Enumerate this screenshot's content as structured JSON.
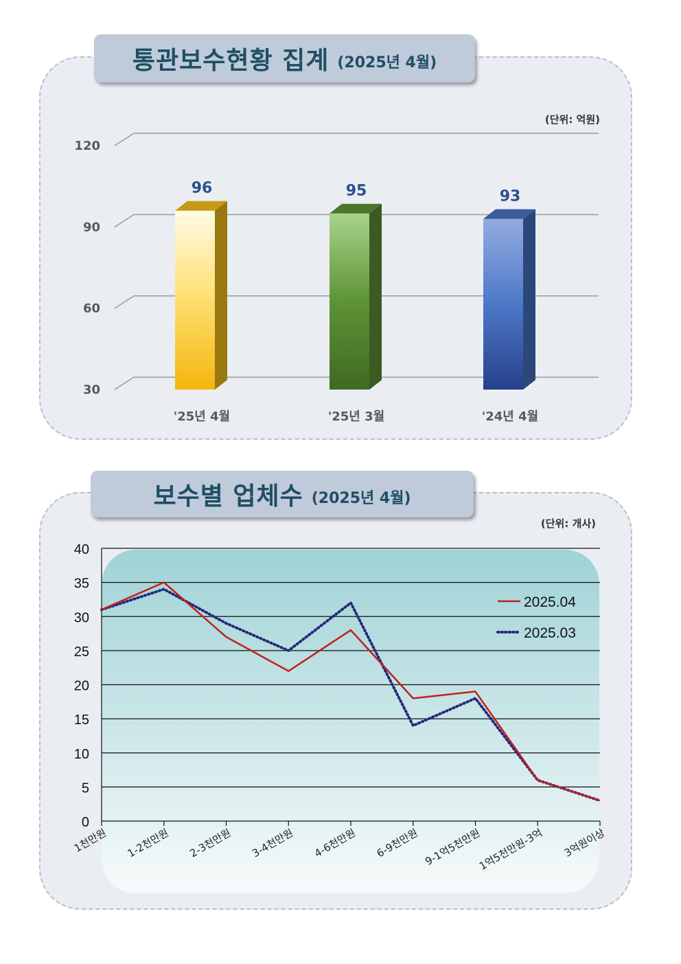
{
  "bar_section": {
    "title": "통관보수현황 집계",
    "subtitle": "(2025년 4월)",
    "unit": "(단위: 억원)"
  },
  "line_section": {
    "title": "보수별 업체수",
    "subtitle": "(2025년 4월)",
    "unit": "(단위: 개사)"
  },
  "chart_data": [
    {
      "type": "bar",
      "categories": [
        "'25년 4월",
        "'25년 3월",
        "'24년 4월"
      ],
      "values": [
        96,
        95,
        93
      ],
      "data_labels": [
        "96",
        "95",
        "93"
      ],
      "yticks": [
        "30",
        "60",
        "90",
        "120"
      ],
      "ylim": [
        30,
        120
      ],
      "colors": [
        "#f6c21a",
        "#5e9336",
        "#4a72c4"
      ],
      "grid": true,
      "style": "3d"
    },
    {
      "type": "line",
      "categories": [
        "1천만원",
        "1-2천만원",
        "2-3천만원",
        "3-4천만원",
        "4-6천만원",
        "6-9천만원",
        "9-1억5천만원",
        "1억5천만원-3억",
        "3억원이상"
      ],
      "series": [
        {
          "name": "2025.04",
          "values": [
            31,
            35,
            27,
            22,
            28,
            18,
            19,
            6,
            3
          ],
          "color": "#c0201f",
          "dash": "solid"
        },
        {
          "name": "2025.03",
          "values": [
            31,
            34,
            29,
            25,
            32,
            14,
            18,
            6,
            3
          ],
          "color": "#26287a",
          "dash": "dotted"
        }
      ],
      "yticks": [
        "0",
        "5",
        "10",
        "15",
        "20",
        "25",
        "30",
        "35",
        "40"
      ],
      "ylim": [
        0,
        40
      ],
      "grid": true,
      "legend": "right"
    }
  ]
}
